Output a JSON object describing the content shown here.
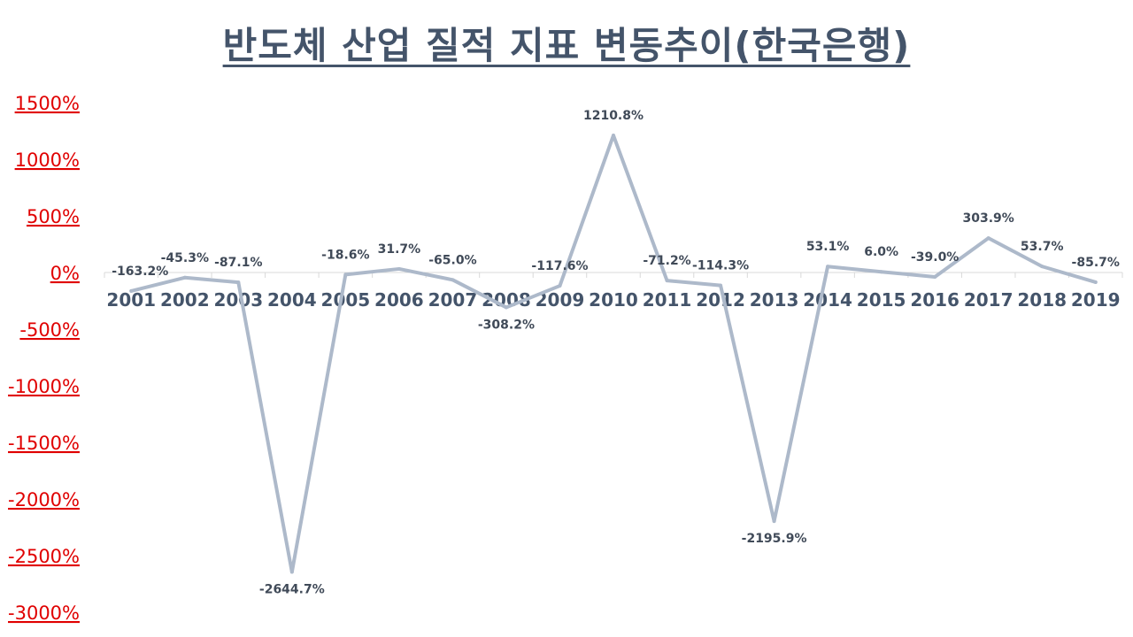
{
  "chart_data": {
    "type": "line",
    "title": "반도체 산업 질적 지표 변동추이(한국은행)",
    "xlabel": "",
    "ylabel": "",
    "categories": [
      "2001",
      "2002",
      "2003",
      "2004",
      "2005",
      "2006",
      "2007",
      "2008",
      "2009",
      "2010",
      "2011",
      "2012",
      "2013",
      "2014",
      "2015",
      "2016",
      "2017",
      "2018",
      "2019"
    ],
    "series": [
      {
        "values": [
          -163.2,
          -45.3,
          -87.1,
          -2644.7,
          -18.6,
          31.7,
          -65.0,
          -308.2,
          -117.6,
          1210.8,
          -71.2,
          -114.3,
          -2195.9,
          53.1,
          6.0,
          -39.0,
          303.9,
          53.7,
          -85.7
        ],
        "labels": [
          "-163.2%",
          "-45.3%",
          "-87.1%",
          "-2644.7%",
          "-18.6%",
          "31.7%",
          "-65.0%",
          "-308.2%",
          "-117.6%",
          "1210.8%",
          "-71.2%",
          "-114.3%",
          "-2195.9%",
          "53.1%",
          "6.0%",
          "-39.0%",
          "303.9%",
          "53.7%",
          "-85.7%"
        ],
        "color": "#adb9ca"
      }
    ],
    "y_ticks": [
      1500,
      1000,
      500,
      0,
      -500,
      -1000,
      -1500,
      -2000,
      -2500,
      -3000
    ],
    "y_tick_labels": [
      "1500%",
      "1000%",
      "500%",
      "0%",
      "-500%",
      "-1000%",
      "-1500%",
      "-2000%",
      "-2500%",
      "-3000%"
    ],
    "ylim": [
      -3000,
      1500
    ],
    "grid": false,
    "legend": "none",
    "colors": {
      "title": "#44546a",
      "y_ticks": "#e00000",
      "x_ticks": "#44546a",
      "line": "#adb9ca",
      "data_labels": "#404a58",
      "axis": "#d9d9d9"
    }
  }
}
